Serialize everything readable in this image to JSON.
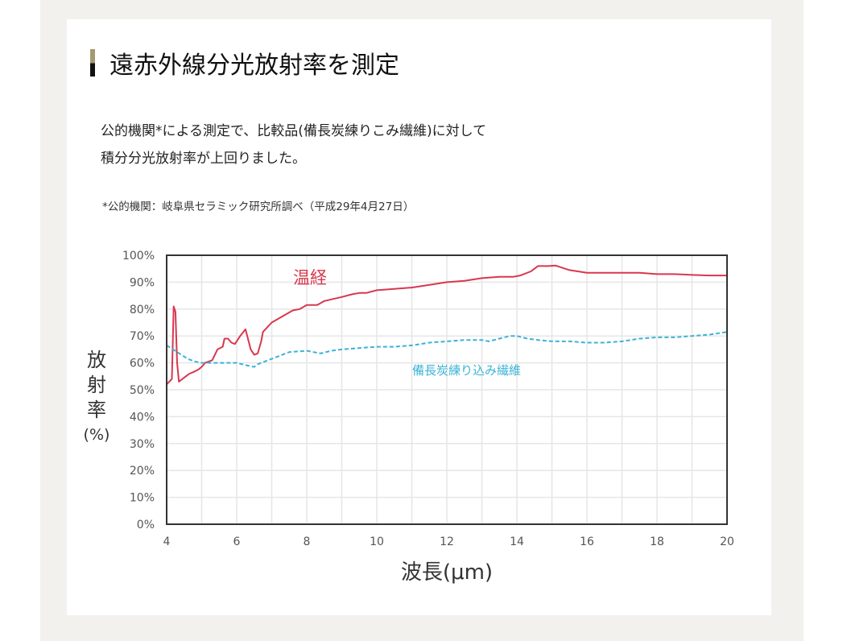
{
  "section": {
    "title": "遠赤外線分光放射率を測定",
    "body_lines": [
      "公的機関*による測定で、比較品(備長炭練りこみ繊維)に対して",
      "積分分光放射率が上回りました。"
    ],
    "note": "*公的機関：岐阜県セラミック研究所調べ（平成29年4月27日）"
  },
  "colors": {
    "onkei": "#d7384f",
    "binchotan": "#3bb3d6",
    "title_bar_top": "#a39a73",
    "title_bar_bottom": "#111111",
    "background_band": "#f2f1ee"
  },
  "chart_data": {
    "type": "line",
    "title": "",
    "xlabel": "波長(μm)",
    "ylabel": "放射率(%)",
    "ylabel_main": "放射率",
    "ylabel_unit": "(%)",
    "xlim": [
      4,
      20
    ],
    "ylim": [
      0,
      100
    ],
    "x_ticks": [
      4,
      6,
      8,
      10,
      12,
      14,
      16,
      18,
      20
    ],
    "y_ticks": [
      "0%",
      "10%",
      "20%",
      "30%",
      "40%",
      "50%",
      "60%",
      "70%",
      "80%",
      "90%",
      "100%"
    ],
    "grid": true,
    "series": [
      {
        "name": "温経",
        "style": "solid",
        "x": [
          4.0,
          4.15,
          4.2,
          4.25,
          4.3,
          4.35,
          4.45,
          4.55,
          4.65,
          4.75,
          4.9,
          5.0,
          5.1,
          5.3,
          5.45,
          5.6,
          5.65,
          5.75,
          5.85,
          5.95,
          6.1,
          6.25,
          6.3,
          6.4,
          6.5,
          6.6,
          6.7,
          6.75,
          7.0,
          7.2,
          7.4,
          7.6,
          7.8,
          8.0,
          8.3,
          8.5,
          9.0,
          9.3,
          9.5,
          9.7,
          10.0,
          10.5,
          11.0,
          11.5,
          12.0,
          12.5,
          13.0,
          13.5,
          13.9,
          14.1,
          14.4,
          14.6,
          14.9,
          15.1,
          15.5,
          16.0,
          17.0,
          17.5,
          18.0,
          18.5,
          19.0,
          19.5,
          20.0
        ],
        "values": [
          52,
          54,
          81,
          79,
          60,
          53,
          54,
          55,
          56,
          56.5,
          57.5,
          58.5,
          60,
          61,
          65,
          66,
          69,
          69,
          67.5,
          67,
          70,
          72.5,
          70,
          65,
          63,
          63.5,
          68,
          71.5,
          75,
          76.5,
          78,
          79.5,
          80,
          81.5,
          81.5,
          83,
          84.5,
          85.5,
          86,
          86,
          87,
          87.5,
          88,
          89,
          90,
          90.5,
          91.5,
          92,
          92,
          92.5,
          94,
          96,
          96,
          96.2,
          94.5,
          93.5,
          93.5,
          93.5,
          93,
          93,
          92.7,
          92.5,
          92.5
        ]
      },
      {
        "name": "備長炭練り込み繊維",
        "style": "dashed",
        "x": [
          4.0,
          4.3,
          4.6,
          4.8,
          5.0,
          5.3,
          5.6,
          6.0,
          6.3,
          6.5,
          6.6,
          6.8,
          7.2,
          7.5,
          8.0,
          8.4,
          8.7,
          9.0,
          9.5,
          10.0,
          10.5,
          11.0,
          11.5,
          12.0,
          12.5,
          13.0,
          13.2,
          13.5,
          13.8,
          14.0,
          14.3,
          14.6,
          15.0,
          15.5,
          16.0,
          16.5,
          17.0,
          17.5,
          18.0,
          18.5,
          19.0,
          19.5,
          20.0
        ],
        "values": [
          66.5,
          64,
          61.5,
          60.5,
          60,
          60,
          60,
          60,
          59,
          58.5,
          59.5,
          60.5,
          62.5,
          64,
          64.5,
          63.5,
          64.5,
          65,
          65.5,
          66,
          66,
          66.5,
          67.5,
          68,
          68.5,
          68.5,
          68,
          69,
          70,
          70,
          69,
          68.5,
          68,
          68,
          67.5,
          67.5,
          68,
          69,
          69.5,
          69.5,
          70,
          70.5,
          71.5
        ]
      }
    ],
    "annotations": [
      {
        "text": "温経",
        "series": 0
      },
      {
        "text": "備長炭練り込み繊維",
        "series": 1
      }
    ]
  }
}
